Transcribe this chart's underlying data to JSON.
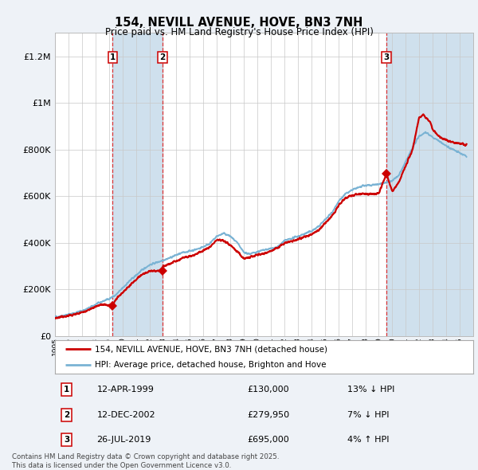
{
  "title": "154, NEVILL AVENUE, HOVE, BN3 7NH",
  "subtitle": "Price paid vs. HM Land Registry's House Price Index (HPI)",
  "footer": "Contains HM Land Registry data © Crown copyright and database right 2025.\nThis data is licensed under the Open Government Licence v3.0.",
  "legend_line1": "154, NEVILL AVENUE, HOVE, BN3 7NH (detached house)",
  "legend_line2": "HPI: Average price, detached house, Brighton and Hove",
  "transactions": [
    {
      "label": "1",
      "date": "12-APR-1999",
      "price": 130000,
      "price_str": "£130,000",
      "hpi_diff": "13% ↓ HPI",
      "year": 1999.28
    },
    {
      "label": "2",
      "date": "12-DEC-2002",
      "price": 279950,
      "price_str": "£279,950",
      "hpi_diff": "7% ↓ HPI",
      "year": 2002.95
    },
    {
      "label": "3",
      "date": "26-JUL-2019",
      "price": 695000,
      "price_str": "£695,000",
      "hpi_diff": "4% ↑ HPI",
      "year": 2019.57
    }
  ],
  "price_line_color": "#cc0000",
  "hpi_line_color": "#7ab3d4",
  "background_color": "#eef2f7",
  "plot_bg_color": "#ffffff",
  "shade_color": "#cfe0ed",
  "grid_color": "#c8c8c8",
  "ylim": [
    0,
    1300000
  ],
  "yticks": [
    0,
    200000,
    400000,
    600000,
    800000,
    1000000,
    1200000
  ],
  "ytick_labels": [
    "£0",
    "£200K",
    "£400K",
    "£600K",
    "£800K",
    "£1M",
    "£1.2M"
  ],
  "xstart": 1995,
  "xend": 2026
}
